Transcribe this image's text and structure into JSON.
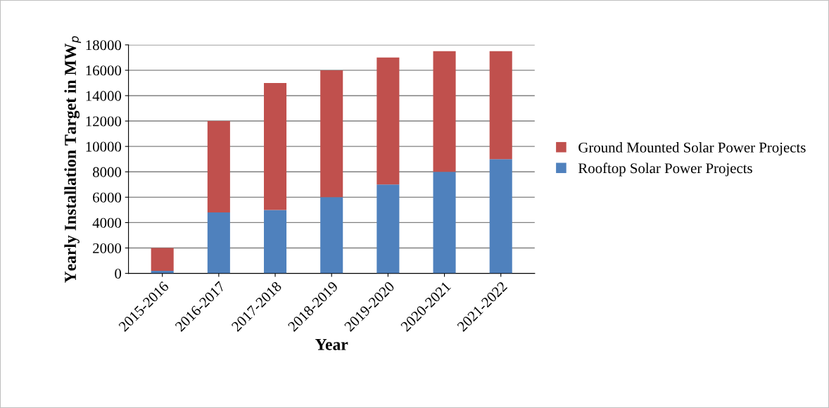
{
  "chart_data": {
    "type": "bar",
    "stacked": true,
    "xlabel": "Year",
    "ylabel": "Yearly Installation Target in MW$_{p}$",
    "categories": [
      "2015-2016",
      "2016-2017",
      "2017-2018",
      "2018-2019",
      "2019-2020",
      "2020-2021",
      "2021-2022"
    ],
    "series": [
      {
        "name": "Rooftop Solar Power Projects",
        "color": "#4f81bd",
        "values": [
          200,
          4800,
          5000,
          6000,
          7000,
          8000,
          9000
        ]
      },
      {
        "name": "Ground Mounted Solar Power Projects",
        "color": "#c0504d",
        "values": [
          1800,
          7200,
          10000,
          10000,
          10000,
          9500,
          8500
        ]
      }
    ],
    "ylim": [
      0,
      18000
    ],
    "yticks": [
      0,
      2000,
      4000,
      6000,
      8000,
      10000,
      12000,
      14000,
      16000,
      18000
    ],
    "grid": "y",
    "legend": "right"
  }
}
